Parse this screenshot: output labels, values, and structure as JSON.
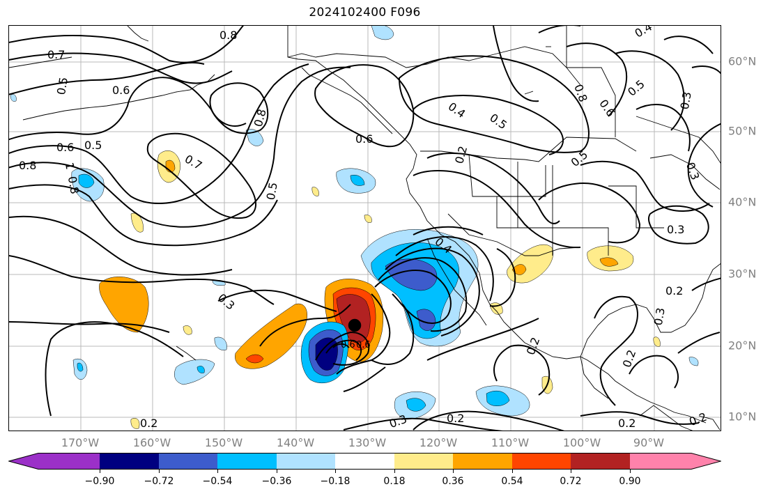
{
  "title": "2024102400 F096",
  "lat_labels": [
    "60°N",
    "50°N",
    "40°N",
    "30°N",
    "20°N",
    "10°N"
  ],
  "lon_labels": [
    "170°W",
    "160°W",
    "150°W",
    "140°W",
    "130°W",
    "120°W",
    "110°W",
    "100°W",
    "90°W"
  ],
  "contour_labels": [
    "0.8",
    "0.7",
    "0.5",
    "0.6",
    "0.8",
    "0.7",
    "0.6",
    "0.5",
    "0.8",
    "1",
    "0.8",
    "0.5",
    "0.6",
    "0.4",
    "0.5",
    "0.2",
    "0.5",
    "0.8",
    "0.6",
    "0.5",
    "0.3",
    "0.4",
    "0.3",
    "0.4",
    "0.3",
    "0.2",
    "0.3",
    "0.2",
    "0.3",
    "0.2",
    "0.2",
    "0.3",
    "0.2",
    "0.2",
    "0.2",
    "0.6",
    "0.6"
  ],
  "colorbar": {
    "tick_labels": [
      "−0.90",
      "−0.72",
      "−0.54",
      "−0.36",
      "−0.18",
      "0.18",
      "0.36",
      "0.54",
      "0.72",
      "0.90"
    ],
    "colors": [
      "#9b30c8",
      "#000080",
      "#3d5ccc",
      "#00bfff",
      "#b0e2ff",
      "#ffffff",
      "#ffec8b",
      "#ffa500",
      "#ff4500",
      "#b22222",
      "#ff82ab"
    ]
  }
}
